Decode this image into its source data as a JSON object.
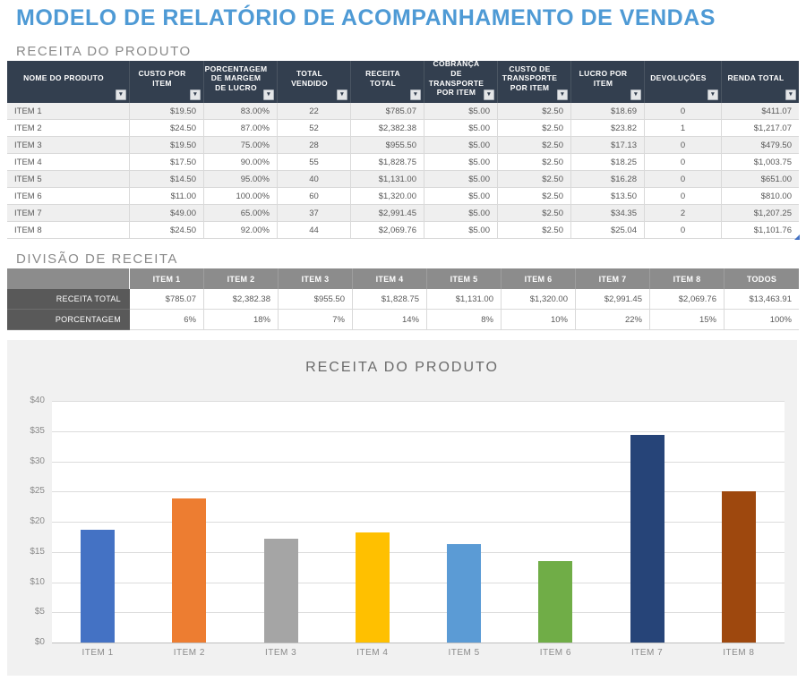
{
  "page": {
    "title": "MODELO DE RELATÓRIO DE ACOMPANHAMENTO DE VENDAS"
  },
  "sections": {
    "product_revenue_title": "RECEITA DO PRODUTO",
    "revenue_split_title": "DIVISÃO DE RECEITA"
  },
  "product_table": {
    "headers": [
      "NOME DO PRODUTO",
      "CUSTO POR ITEM",
      "PORCENTAGEM DE MARGEM DE LUCRO",
      "TOTAL VENDIDO",
      "RECEITA TOTAL",
      "COBRANÇA DE TRANSPORTE POR ITEM",
      "CUSTO DE TRANSPORTE POR ITEM",
      "LUCRO POR ITEM",
      "DEVOLUÇÕES",
      "RENDA TOTAL"
    ],
    "filter_icon": "▾",
    "rows": [
      [
        "ITEM 1",
        "$19.50",
        "83.00%",
        "22",
        "$785.07",
        "$5.00",
        "$2.50",
        "$18.69",
        "0",
        "$411.07"
      ],
      [
        "ITEM 2",
        "$24.50",
        "87.00%",
        "52",
        "$2,382.38",
        "$5.00",
        "$2.50",
        "$23.82",
        "1",
        "$1,217.07"
      ],
      [
        "ITEM 3",
        "$19.50",
        "75.00%",
        "28",
        "$955.50",
        "$5.00",
        "$2.50",
        "$17.13",
        "0",
        "$479.50"
      ],
      [
        "ITEM 4",
        "$17.50",
        "90.00%",
        "55",
        "$1,828.75",
        "$5.00",
        "$2.50",
        "$18.25",
        "0",
        "$1,003.75"
      ],
      [
        "ITEM 5",
        "$14.50",
        "95.00%",
        "40",
        "$1,131.00",
        "$5.00",
        "$2.50",
        "$16.28",
        "0",
        "$651.00"
      ],
      [
        "ITEM 6",
        "$11.00",
        "100.00%",
        "60",
        "$1,320.00",
        "$5.00",
        "$2.50",
        "$13.50",
        "0",
        "$810.00"
      ],
      [
        "ITEM 7",
        "$49.00",
        "65.00%",
        "37",
        "$2,991.45",
        "$5.00",
        "$2.50",
        "$34.35",
        "2",
        "$1,207.25"
      ],
      [
        "ITEM 8",
        "$24.50",
        "92.00%",
        "44",
        "$2,069.76",
        "$5.00",
        "$2.50",
        "$25.04",
        "0",
        "$1,101.76"
      ]
    ]
  },
  "split_table": {
    "col_headers": [
      "ITEM 1",
      "ITEM 2",
      "ITEM 3",
      "ITEM 4",
      "ITEM 5",
      "ITEM 6",
      "ITEM 7",
      "ITEM 8",
      "TODOS"
    ],
    "rows": [
      {
        "label": "RECEITA TOTAL",
        "values": [
          "$785.07",
          "$2,382.38",
          "$955.50",
          "$1,828.75",
          "$1,131.00",
          "$1,320.00",
          "$2,991.45",
          "$2,069.76",
          "$13,463.91"
        ]
      },
      {
        "label": "PORCENTAGEM",
        "values": [
          "6%",
          "18%",
          "7%",
          "14%",
          "8%",
          "10%",
          "22%",
          "15%",
          "100%"
        ]
      }
    ]
  },
  "chart_data": {
    "type": "bar",
    "title": "RECEITA DO PRODUTO",
    "categories": [
      "ITEM 1",
      "ITEM 2",
      "ITEM 3",
      "ITEM 4",
      "ITEM 5",
      "ITEM 6",
      "ITEM 7",
      "ITEM 8"
    ],
    "values": [
      18.69,
      23.82,
      17.13,
      18.25,
      16.28,
      13.5,
      34.35,
      25.04
    ],
    "bar_colors": [
      "#4472C4",
      "#ED7D31",
      "#A5A5A5",
      "#FFC000",
      "#5B9BD5",
      "#70AD47",
      "#264478",
      "#9E480E"
    ],
    "xlabel": "",
    "ylabel": "",
    "ylim": [
      0,
      40
    ],
    "ytick_step": 5,
    "ytick_labels": [
      "$0",
      "$5",
      "$10",
      "$15",
      "$20",
      "$25",
      "$30",
      "$35",
      "$40"
    ],
    "grid": true,
    "legend": false
  },
  "colors": {
    "page_title": "#4e9ad5",
    "table_header_bg": "#333f4f",
    "row_alt_bg": "#efefef",
    "split_header_bg": "#8c8c8c",
    "split_label_bg": "#595959",
    "chart_bg": "#f1f1f1",
    "gridline": "#dcdcdc"
  }
}
